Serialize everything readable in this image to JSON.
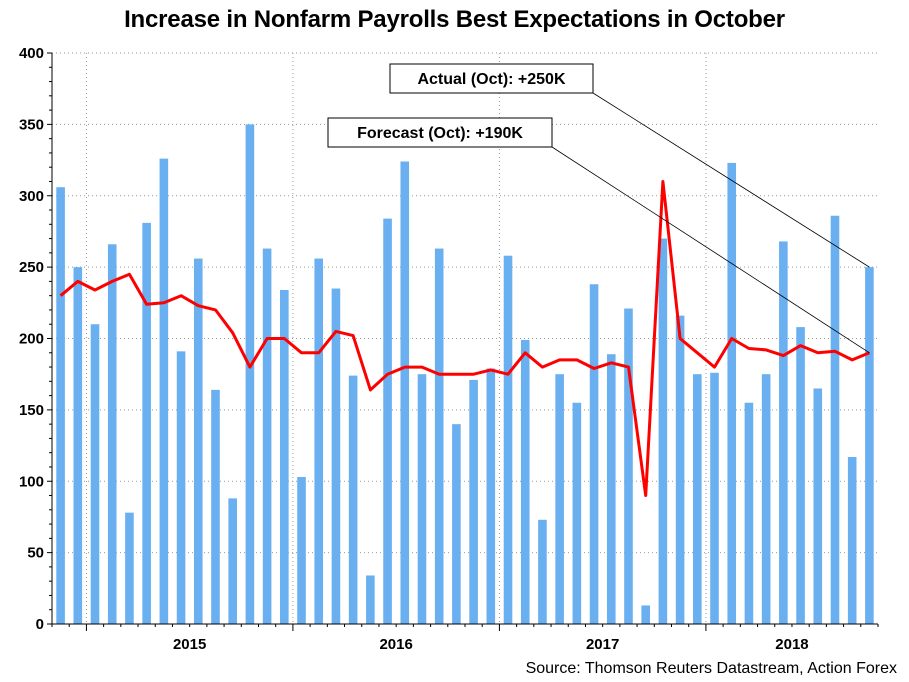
{
  "chart_data": {
    "type": "bar",
    "title": "Increase in Nonfarm Payrolls Best Expectations in October",
    "xlabel": "",
    "ylabel": "",
    "ylim": [
      0,
      400
    ],
    "yticks": [
      0,
      50,
      100,
      150,
      200,
      250,
      300,
      350,
      400
    ],
    "grid": true,
    "x_year_labels": [
      "2015",
      "2016",
      "2017",
      "2018"
    ],
    "series": [
      {
        "name": "Actual",
        "kind": "bar",
        "color": "#6ab0f0",
        "values": [
          306,
          250,
          210,
          266,
          78,
          281,
          326,
          191,
          256,
          164,
          88,
          350,
          263,
          234,
          103,
          256,
          235,
          174,
          34,
          284,
          324,
          175,
          263,
          140,
          171,
          179,
          258,
          199,
          73,
          175,
          155,
          238,
          189,
          221,
          13,
          270,
          216,
          175,
          176,
          323,
          155,
          175,
          268,
          208,
          165,
          286,
          117,
          250
        ]
      },
      {
        "name": "Forecast",
        "kind": "line",
        "color": "#ff0000",
        "values": [
          230,
          240,
          234,
          240,
          245,
          224,
          225,
          230,
          223,
          220,
          204,
          180,
          200,
          200,
          190,
          190,
          205,
          202,
          164,
          175,
          180,
          180,
          175,
          175,
          175,
          178,
          175,
          190,
          180,
          185,
          185,
          179,
          183,
          180,
          90,
          310,
          200,
          190,
          180,
          200,
          193,
          192,
          188,
          195,
          190,
          191,
          185,
          190
        ]
      }
    ],
    "annotations": [
      {
        "label": "Actual (Oct): +250K",
        "points_to_value": 250
      },
      {
        "label": "Forecast (Oct): +190K",
        "points_to_value": 190
      }
    ]
  },
  "source": "Source: Thomson Reuters Datastream, Action Forex"
}
